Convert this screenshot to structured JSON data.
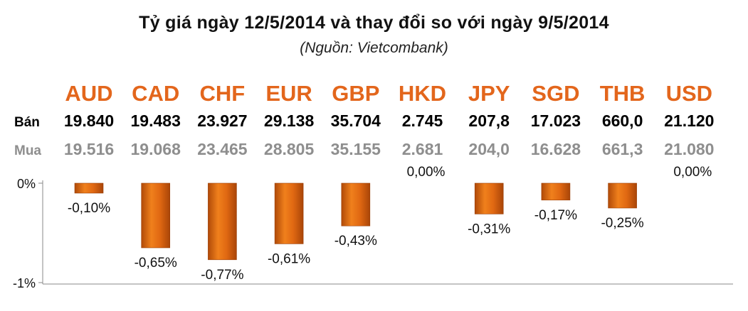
{
  "chart_data": {
    "type": "bar",
    "title": "Tỷ giá ngày 12/5/2014 và thay đổi so với ngày 9/5/2014",
    "subtitle": "(Nguồn: Vietcombank)",
    "categories": [
      "AUD",
      "CAD",
      "CHF",
      "EUR",
      "GBP",
      "HKD",
      "JPY",
      "SGD",
      "THB",
      "USD"
    ],
    "rows": [
      {
        "label": "Bán",
        "values": [
          "19.840",
          "19.483",
          "23.927",
          "29.138",
          "35.704",
          "2.745",
          "207,8",
          "17.023",
          "660,0",
          "21.120"
        ]
      },
      {
        "label": "Mua",
        "values": [
          "19.516",
          "19.068",
          "23.465",
          "28.805",
          "35.155",
          "2.681",
          "204,0",
          "16.628",
          "661,3",
          "21.080"
        ]
      }
    ],
    "series": [
      {
        "values": [
          -0.1,
          -0.65,
          -0.77,
          -0.61,
          -0.43,
          0.0,
          -0.31,
          -0.17,
          -0.25,
          0.0
        ]
      }
    ],
    "data_labels": [
      "-0,10%",
      "-0,65%",
      "-0,77%",
      "-0,61%",
      "-0,43%",
      "0,00%",
      "-0,31%",
      "-0,17%",
      "-0,25%",
      "0,00%"
    ],
    "yticks": [
      {
        "value": 0,
        "label": "0%"
      },
      {
        "value": -1,
        "label": "-1%"
      }
    ],
    "ylim": [
      -1,
      0
    ],
    "grid": false,
    "colors": {
      "bar_top": "#f0801c",
      "bar_dark": "#b04a08",
      "bar_mid": "#e06812",
      "currency": "#e3661c",
      "sell": "#000000",
      "buy": "#8e8e8e"
    }
  }
}
